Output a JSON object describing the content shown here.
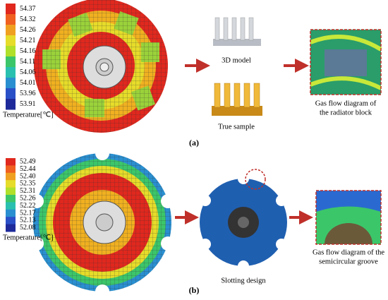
{
  "panel_a": {
    "legend_ticks": [
      "54.37",
      "54.32",
      "54.26",
      "54.21",
      "54.16",
      "54.11",
      "54.06",
      "54.01",
      "53.96",
      "53.91"
    ],
    "legend_title": "Temperature[℃]",
    "model_label": "3D model",
    "sample_label": "True sample",
    "flow_caption": [
      "Gas flow diagram of",
      "the radiator block"
    ],
    "panel_label": "(a)"
  },
  "panel_b": {
    "legend_ticks": [
      "52.49",
      "52.44",
      "52.40",
      "52.35",
      "52.31",
      "52.26",
      "52.22",
      "52.17",
      "52.13",
      "52.08"
    ],
    "legend_title": "Temperature[℃]",
    "design_label": "Slotting design",
    "flow_caption": [
      "Gas flow diagram of the",
      "semicircular groove"
    ],
    "panel_label": "(b)"
  }
}
